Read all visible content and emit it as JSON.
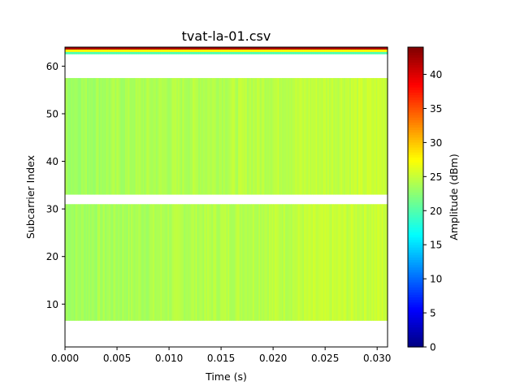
{
  "chart_data": {
    "type": "heatmap",
    "title": "tvat-la-01.csv",
    "xlabel": "Time (s)",
    "ylabel": "Subcarrier Index",
    "colorbar_label": "Amplitude (dBm)",
    "colormap": "jet",
    "xlim": [
      0,
      0.031
    ],
    "ylim": [
      1,
      64
    ],
    "clim": [
      0,
      44
    ],
    "x_ticks": [
      "0.000",
      "0.005",
      "0.010",
      "0.015",
      "0.020",
      "0.025",
      "0.030"
    ],
    "y_ticks": [
      "10",
      "20",
      "30",
      "40",
      "50",
      "60"
    ],
    "colorbar_ticks": [
      "0",
      "5",
      "10",
      "15",
      "20",
      "25",
      "30",
      "35",
      "40"
    ],
    "bands": [
      {
        "from": 6.5,
        "to": 31,
        "value_min": 21,
        "value_max": 26
      },
      {
        "from": 33,
        "to": 57.5,
        "value_min": 21,
        "value_max": 26
      },
      {
        "from": 62.5,
        "to": 63,
        "value_min": 20,
        "value_max": 20
      },
      {
        "from": 63,
        "to": 63.5,
        "value_min": 28,
        "value_max": 28
      },
      {
        "from": 63.5,
        "to": 64,
        "value_min": 42,
        "value_max": 42
      }
    ],
    "grid": false,
    "colorbar_position": "right"
  }
}
